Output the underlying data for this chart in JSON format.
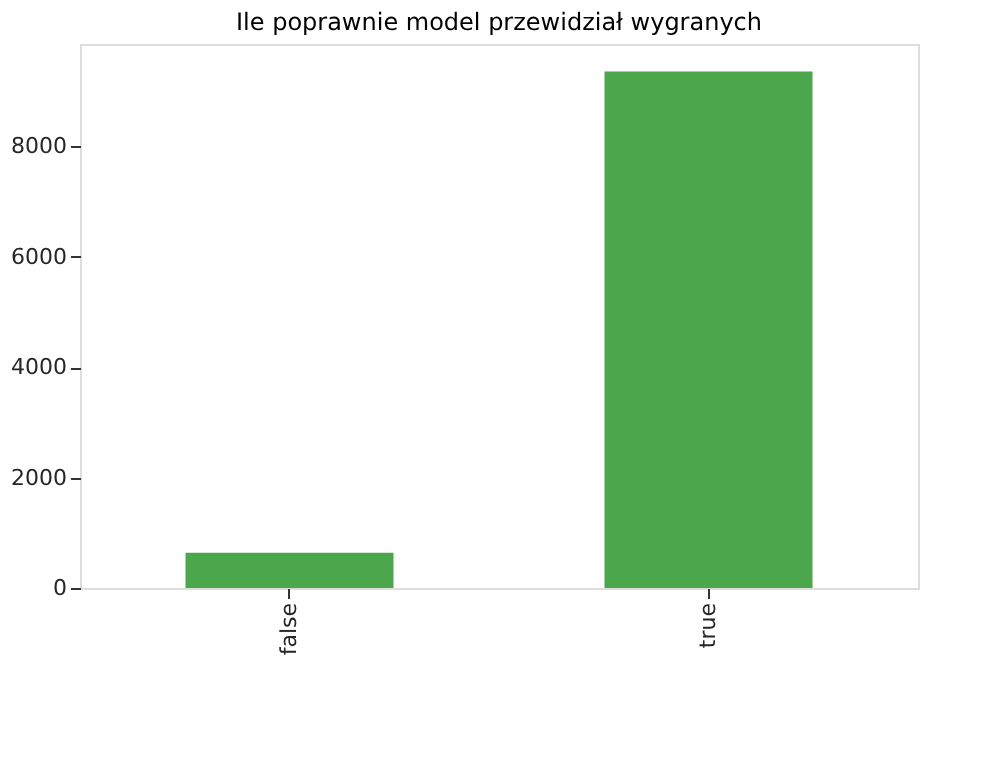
{
  "chart_data": {
    "type": "bar",
    "title": "Ile poprawnie model przewidział wygranych",
    "categories": [
      "false",
      "true"
    ],
    "values": [
      640,
      9350
    ],
    "color": "#4ca64c",
    "ylim": [
      0,
      9850
    ],
    "yticks": [
      0,
      2000,
      4000,
      6000,
      8000
    ],
    "grid": false
  }
}
